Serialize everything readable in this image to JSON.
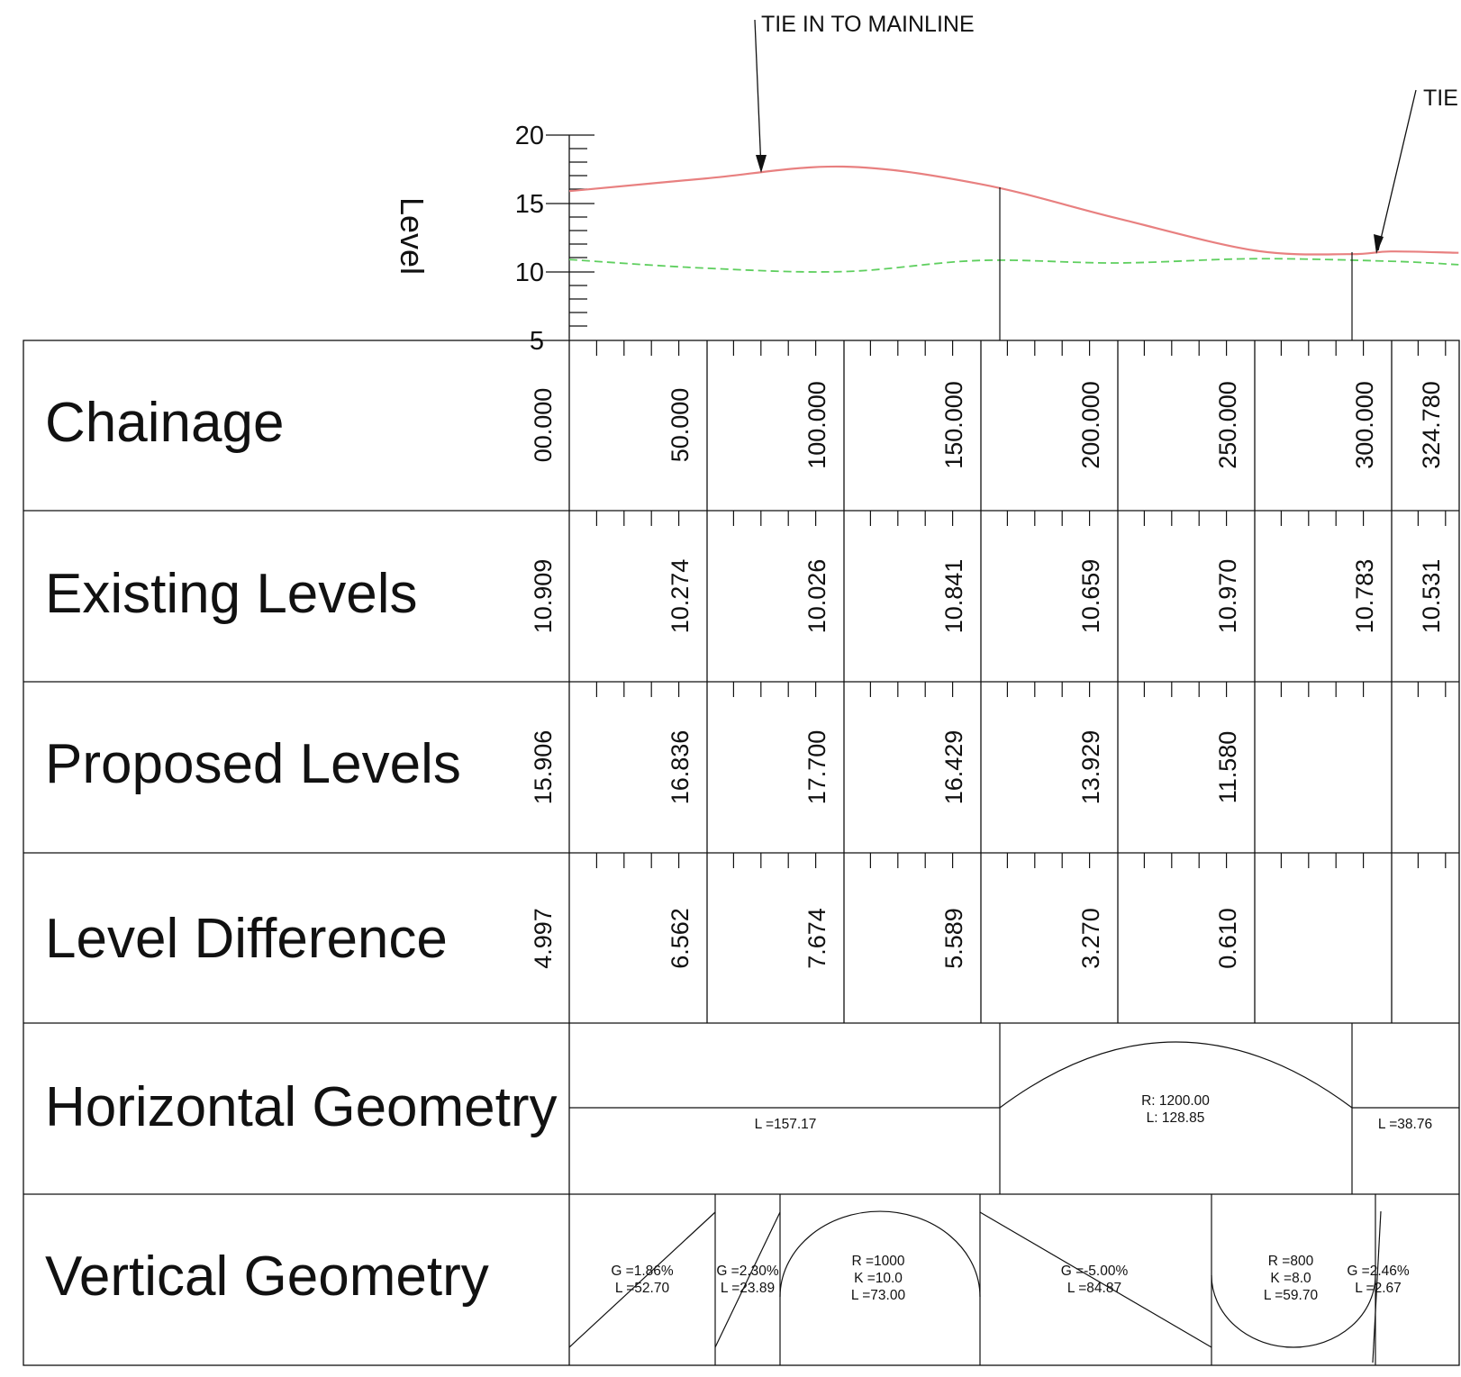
{
  "annotations": {
    "tie_in_left": "TIE IN TO MAINLINE",
    "tie_in_right": "TIE"
  },
  "profile": {
    "y_axis_label": "Level",
    "y_ticks": [
      20,
      15,
      10,
      5
    ],
    "ylim": [
      5,
      20
    ],
    "chainage_range": [
      0,
      324.78
    ],
    "proposed_color": "#e88080",
    "existing_color": "#5fcf5f"
  },
  "table": {
    "rows": {
      "chainage": "Chainage",
      "existing": "Existing Levels",
      "proposed": "Proposed Levels",
      "difference": "Level Difference",
      "horizontal": "Horizontal Geometry",
      "vertical": "Vertical Geometry"
    },
    "chainage_values": [
      "00.000",
      "50.000",
      "100.000",
      "150.000",
      "200.000",
      "250.000",
      "300.000",
      "324.780"
    ],
    "existing_values": [
      "10.909",
      "10.274",
      "10.026",
      "10.841",
      "10.659",
      "10.970",
      "10.783",
      "10.531"
    ],
    "proposed_values": [
      "15.906",
      "16.836",
      "17.700",
      "16.429",
      "13.929",
      "11.580",
      "",
      ""
    ],
    "difference_values": [
      "4.997",
      "6.562",
      "7.674",
      "5.589",
      "3.270",
      "0.610",
      "",
      ""
    ]
  },
  "horizontal_geometry": {
    "tangent_1": "L =157.17",
    "curve_radius": "R: 1200.00",
    "curve_length": "L: 128.85",
    "tangent_2": "L =38.76"
  },
  "vertical_geometry": {
    "grade_1": "G =1.86%",
    "grade_1_length": "L =52.70",
    "grade_2": "G =2.30%",
    "grade_2_length": "L =23.89",
    "crest_radius": "R =1000",
    "crest_k": "K =10.0",
    "crest_length": "L =73.00",
    "grade_3": "G =-5.00%",
    "grade_3_length": "L =84.87",
    "sag_radius": "R =800",
    "sag_k": "K =8.0",
    "sag_length": "L =59.70",
    "grade_4": "G =2.46%",
    "grade_4_length": "L =2.67"
  }
}
